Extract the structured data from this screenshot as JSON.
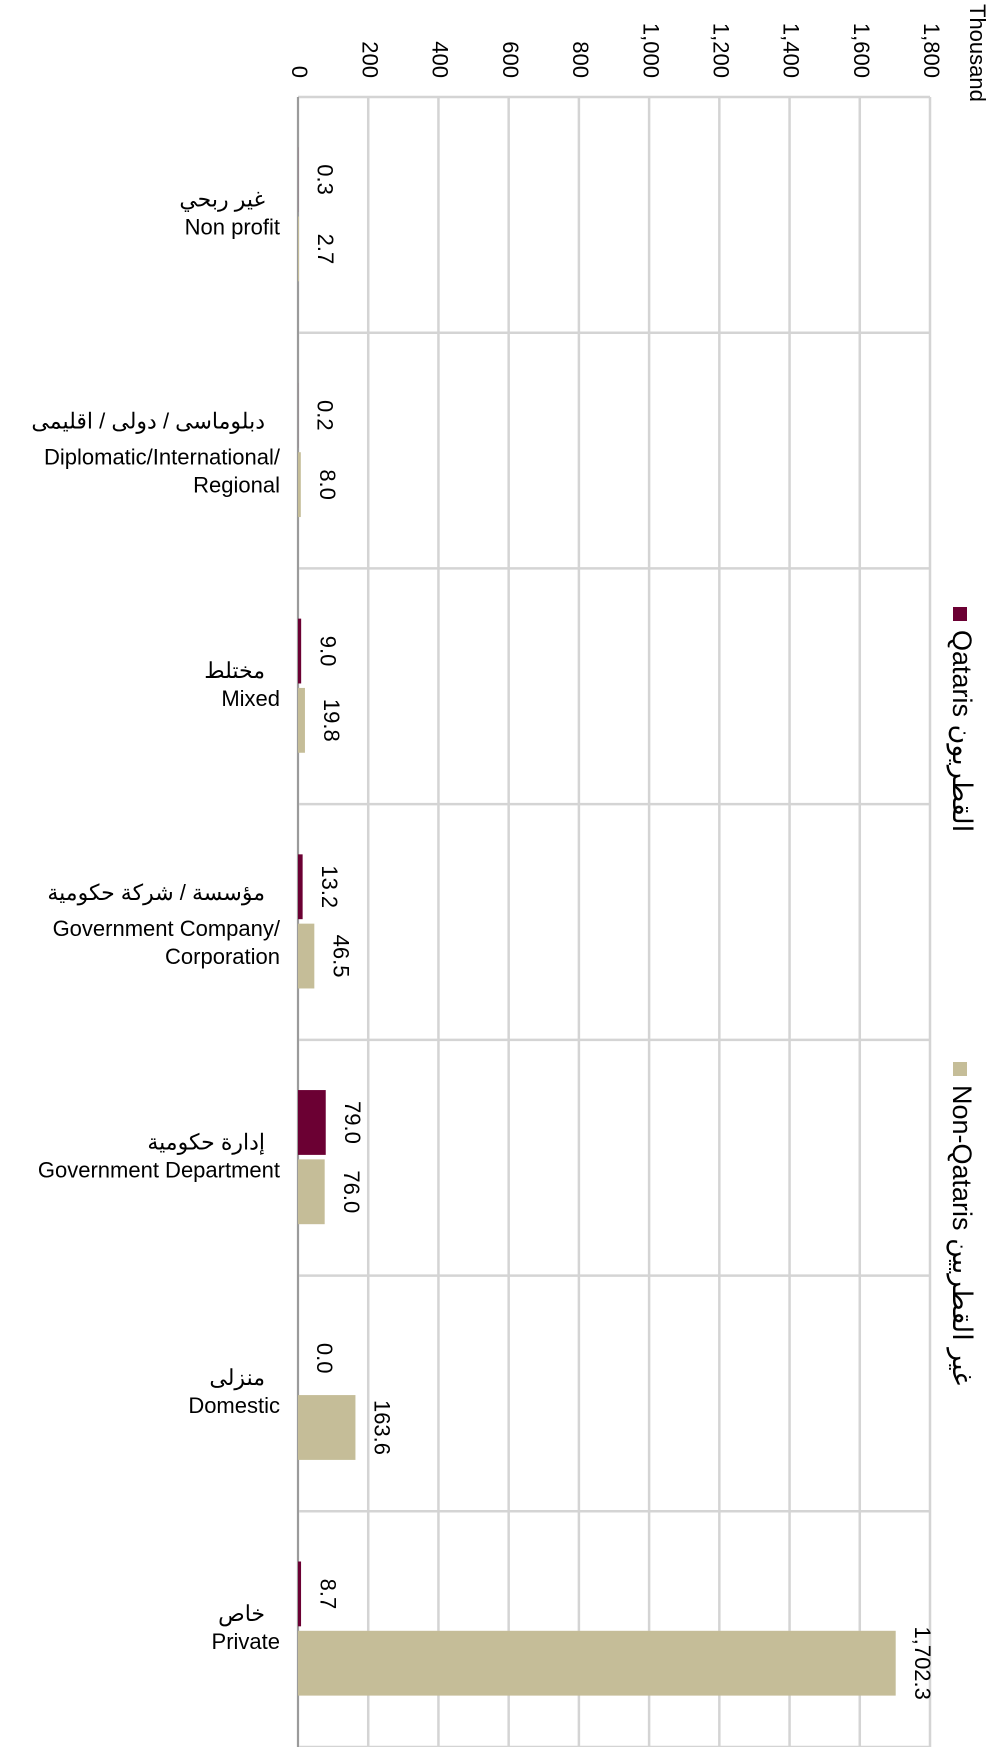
{
  "chart_data": {
    "type": "bar",
    "orientation": "horizontal",
    "axis_label": "Thousand",
    "categories": [
      [
        "غير ربحي",
        "Non profit"
      ],
      [
        "دبلوماسى / دولى / اقليمى",
        "Diplomatic/International/",
        "Regional"
      ],
      [
        "مختلط",
        "Mixed"
      ],
      [
        "مؤسسة / شركة حكومية",
        "Government Company/",
        "Corporation"
      ],
      [
        "إدارة حكومية",
        "Government Department"
      ],
      [
        "منزلى",
        "Domestic"
      ],
      [
        "خاص",
        "Private"
      ]
    ],
    "series": [
      {
        "name": "Qataris القطريون",
        "color": "#6b0033",
        "values": [
          0.3,
          0.2,
          9.0,
          13.2,
          79.0,
          0.0,
          8.7
        ],
        "value_labels": [
          "0.3",
          "0.2",
          "9.0",
          "13.2",
          "79.0",
          "0.0",
          "8.7"
        ]
      },
      {
        "name": "Non-Qataris غير القطريين",
        "color": "#c5bd98",
        "values": [
          2.7,
          8.0,
          19.8,
          46.5,
          76.0,
          163.6,
          1702.3
        ],
        "value_labels": [
          "2.7",
          "8.0",
          "19.8",
          "46.5",
          "76.0",
          "163.6",
          "1,702.3"
        ]
      }
    ],
    "xlim": [
      0,
      1800
    ],
    "xticks": [
      0,
      200,
      400,
      600,
      800,
      {
        "value": 1000,
        "label": "1,000"
      },
      {
        "value": 1200,
        "label": "1,200"
      },
      {
        "value": 1400,
        "label": "1,400"
      },
      {
        "value": 1600,
        "label": "1,600"
      },
      {
        "value": 1800,
        "label": "1,800"
      }
    ],
    "grid": true
  }
}
